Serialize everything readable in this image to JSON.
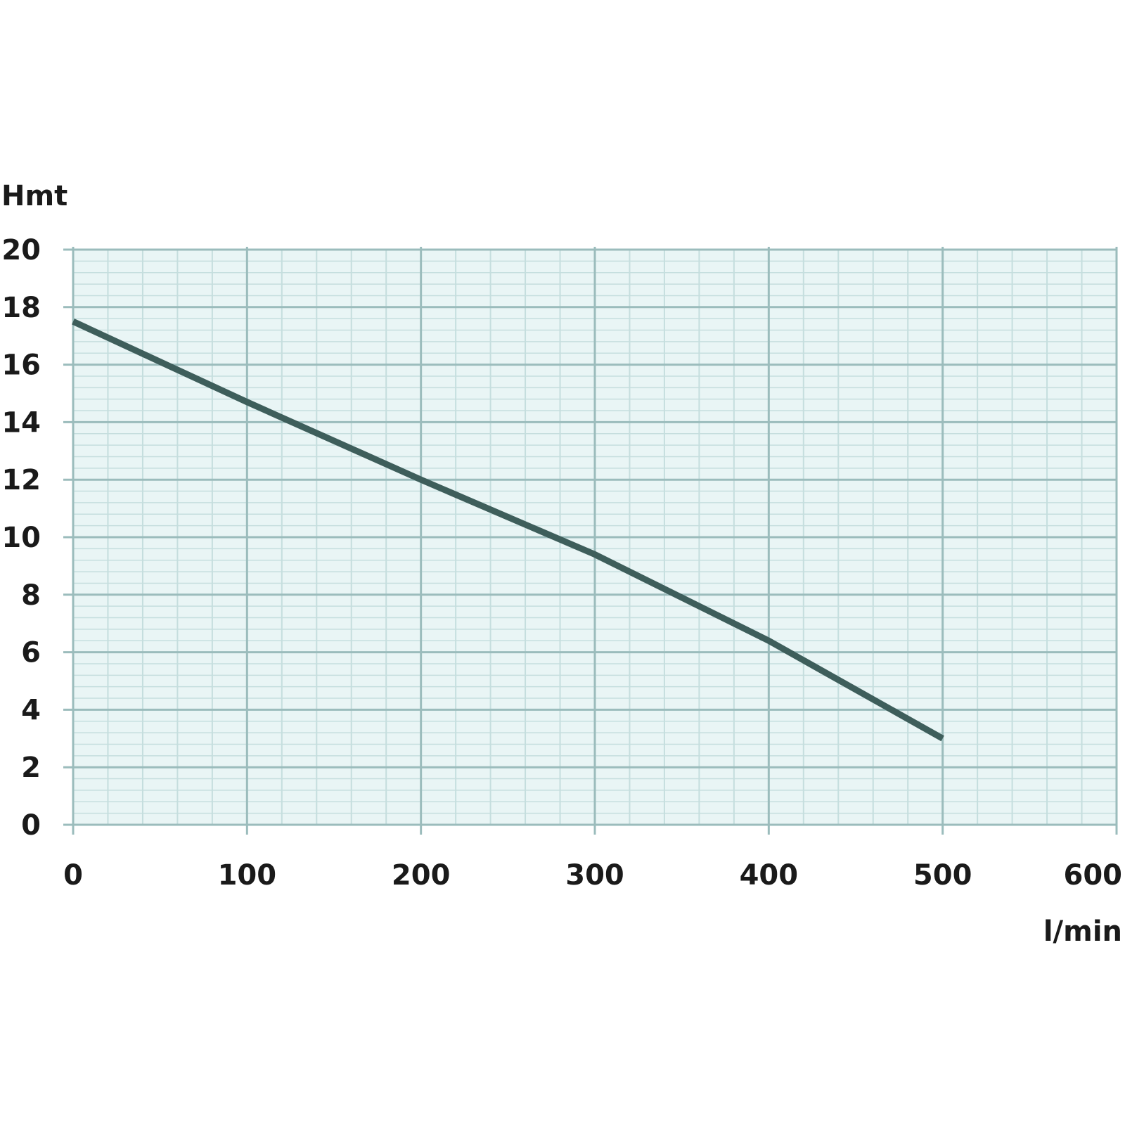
{
  "chart_data": {
    "type": "line",
    "title": "",
    "ylabel": "Hmt",
    "xlabel": "l/min",
    "xlim": [
      0,
      600
    ],
    "ylim": [
      0,
      20
    ],
    "x_ticks": [
      0,
      100,
      200,
      300,
      400,
      500,
      600
    ],
    "y_ticks": [
      0,
      2,
      4,
      6,
      8,
      10,
      12,
      14,
      16,
      18,
      20
    ],
    "grid": true,
    "series": [
      {
        "x": [
          0,
          100,
          200,
          300,
          400,
          500
        ],
        "y": [
          17.5,
          14.7,
          12.0,
          9.4,
          6.4,
          3.0
        ]
      }
    ],
    "colors": {
      "major_grid": "#9bbcbc",
      "minor_grid": "#c5dede",
      "background": "#e9f5f5",
      "line": "#3e5e5b",
      "text": "#1a1a1a"
    }
  }
}
